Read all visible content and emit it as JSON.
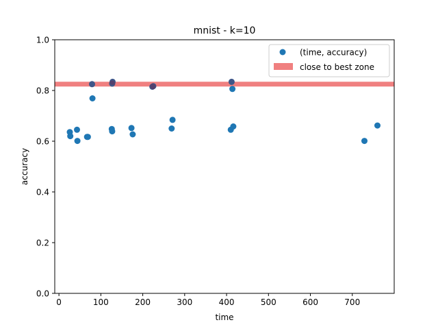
{
  "chart_data": {
    "type": "scatter",
    "title": "mnist - k=10",
    "xlabel": "time",
    "ylabel": "accuracy",
    "xlim": [
      -10,
      800
    ],
    "ylim": [
      0,
      1.0
    ],
    "xticks": [
      0,
      100,
      200,
      300,
      400,
      500,
      600,
      700
    ],
    "yticks": [
      0.0,
      0.2,
      0.4,
      0.6,
      0.8,
      1.0
    ],
    "ytick_labels": [
      "0.0",
      "0.2",
      "0.4",
      "0.6",
      "0.8",
      "1.0"
    ],
    "grid": false,
    "legend": "top-right",
    "series": [
      {
        "name": "(time, accuracy)",
        "color": "#1f77b4",
        "x": [
          26,
          27,
          43,
          44,
          67,
          69,
          79,
          80,
          126,
          127,
          127,
          128,
          173,
          176,
          223,
          225,
          269,
          271,
          410,
          412,
          414,
          416,
          729,
          760
        ],
        "y": [
          0.636,
          0.62,
          0.645,
          0.601,
          0.617,
          0.617,
          0.825,
          0.769,
          0.648,
          0.639,
          0.827,
          0.834,
          0.652,
          0.627,
          0.815,
          0.817,
          0.65,
          0.684,
          0.645,
          0.834,
          0.806,
          0.658,
          0.601,
          0.662
        ]
      }
    ],
    "band": {
      "name": "close to best zone",
      "y": 0.825,
      "color": "#f08080"
    }
  }
}
